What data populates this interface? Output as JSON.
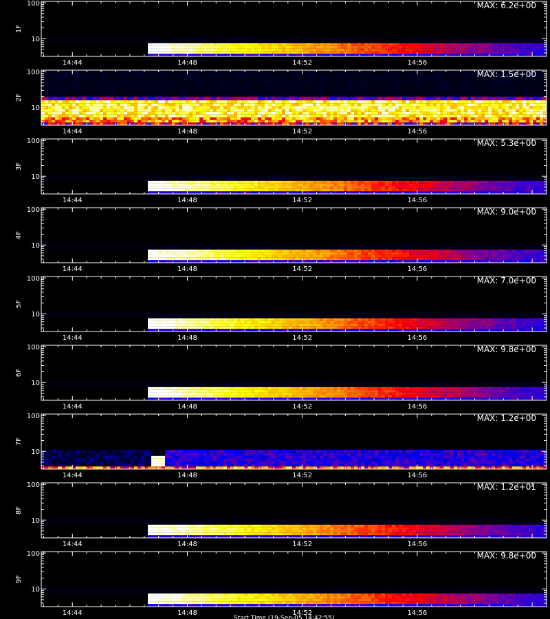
{
  "chart_data": {
    "type": "heatmap",
    "x_ticks": [
      "14:44",
      "14:48",
      "14:52",
      "14:56"
    ],
    "y_ticks": [
      "100",
      "10"
    ],
    "colors": {
      "background": "#000000",
      "axis": "#ffffff",
      "scale": [
        "#000000",
        "#00002a",
        "#0000ff",
        "#7f0099",
        "#ff0000",
        "#ff9900",
        "#ffff00",
        "#ffffff"
      ]
    },
    "panels": [
      {
        "label": "1F",
        "max_label": "MAX: 6.2e+00",
        "max": 6.2,
        "onset_time": "14:46:40",
        "band": "low"
      },
      {
        "label": "2F",
        "max_label": "MAX: 1.5e+00",
        "max": 1.5,
        "onset_time": null,
        "band": "broad"
      },
      {
        "label": "3F",
        "max_label": "MAX: 5.3e+00",
        "max": 5.3,
        "onset_time": "14:46:40",
        "band": "low"
      },
      {
        "label": "4F",
        "max_label": "MAX: 9.0e+00",
        "max": 9.0,
        "onset_time": "14:46:40",
        "band": "low"
      },
      {
        "label": "5F",
        "max_label": "MAX: 7.0e+00",
        "max": 7.0,
        "onset_time": "14:46:40",
        "band": "low"
      },
      {
        "label": "6F",
        "max_label": "MAX: 9.8e+00",
        "max": 9.8,
        "onset_time": "14:46:40",
        "band": "low"
      },
      {
        "label": "7F",
        "max_label": "MAX: 1.2e+00",
        "max": 1.2,
        "onset_time": "14:46:40",
        "band": "noisy"
      },
      {
        "label": "8F",
        "max_label": "MAX: 1.2e+01",
        "max": 12,
        "onset_time": "14:46:40",
        "band": "low"
      },
      {
        "label": "9F",
        "max_label": "MAX: 9.8e+00",
        "max": 9.8,
        "onset_time": "14:46:40",
        "band": "low"
      }
    ],
    "footer_text": "Start Time (19-Sep-05 14:42:55)"
  }
}
